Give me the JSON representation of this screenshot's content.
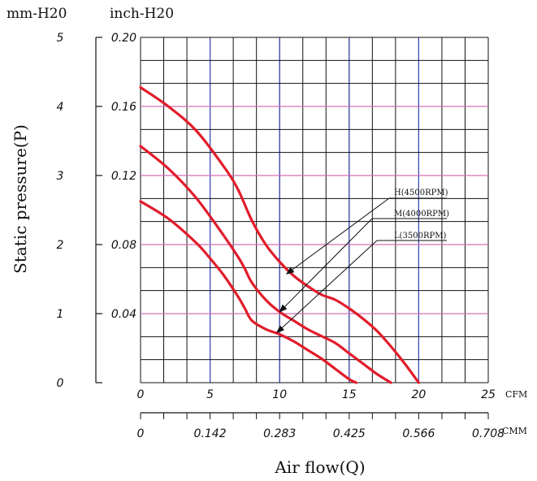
{
  "chart_data": {
    "type": "line",
    "units_header": {
      "left": "mm-H20",
      "right": "inch-H20"
    },
    "ylabel": "Static pressure(P)",
    "xlabel": "Air flow(Q)",
    "y_mm_ticks": [
      "5",
      "4",
      "3",
      "2",
      "1",
      "0"
    ],
    "y_inch_ticks": [
      "0.20",
      "0.16",
      "0.12",
      "0.08",
      "0.04"
    ],
    "x_cfm_ticks": [
      "0",
      "5",
      "10",
      "15",
      "20",
      "25"
    ],
    "x_cfm_unit": "CFM",
    "x_cmm_ticks": [
      "0",
      "0.142",
      "0.283",
      "0.425",
      "0.566",
      "0.708"
    ],
    "x_cmm_unit": "CMM",
    "xlim": [
      0,
      25
    ],
    "ylim_inch": [
      0,
      0.2
    ],
    "colors": {
      "curve": "#e21c2b",
      "grid": "#111111",
      "blue": "#3a49b8",
      "pink": "#d36fb8"
    },
    "series": [
      {
        "name": "H(4500RPM)",
        "x": [
          0,
          2,
          4,
          6,
          7,
          8,
          9,
          10,
          11,
          12,
          13,
          14,
          15,
          16,
          17,
          18,
          19,
          20
        ],
        "y": [
          0.171,
          0.16,
          0.146,
          0.125,
          0.112,
          0.094,
          0.08,
          0.07,
          0.062,
          0.056,
          0.051,
          0.048,
          0.043,
          0.037,
          0.03,
          0.021,
          0.011,
          0.0
        ]
      },
      {
        "name": "M(4000RPM)",
        "x": [
          0,
          2,
          4,
          6,
          7,
          7.5,
          8,
          9,
          10,
          11,
          12,
          13,
          14,
          15,
          16,
          17,
          18
        ],
        "y": [
          0.137,
          0.124,
          0.107,
          0.085,
          0.073,
          0.066,
          0.058,
          0.048,
          0.041,
          0.036,
          0.031,
          0.027,
          0.023,
          0.017,
          0.011,
          0.005,
          0.0
        ]
      },
      {
        "name": "L(3500RPM)",
        "x": [
          0,
          2,
          4,
          5,
          6,
          7,
          7.5,
          8,
          9,
          10,
          11,
          12,
          13,
          14,
          15,
          15.5
        ],
        "y": [
          0.105,
          0.095,
          0.081,
          0.072,
          0.062,
          0.05,
          0.043,
          0.036,
          0.031,
          0.028,
          0.024,
          0.019,
          0.014,
          0.008,
          0.002,
          0.0
        ]
      }
    ]
  }
}
